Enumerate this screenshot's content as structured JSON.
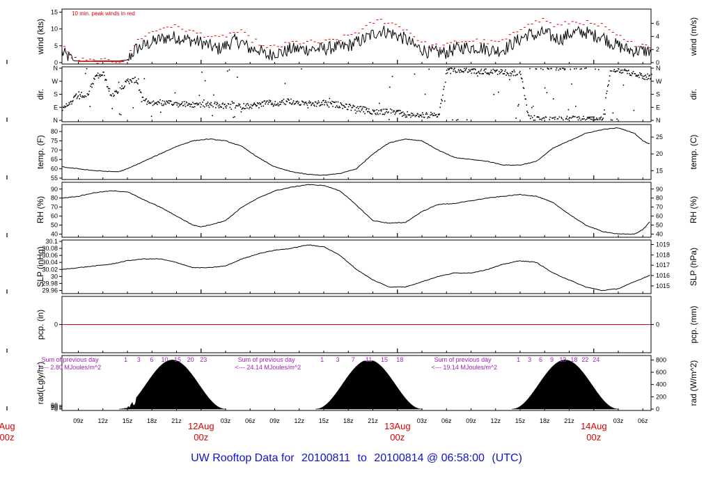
{
  "title": {
    "prefix": "UW Rooftop Data for",
    "start": "20100811",
    "connector": "to",
    "end": "20100814 @ 06:58:00",
    "tz": "(UTC)"
  },
  "time_axis": {
    "tick_labels": [
      "09z",
      "12z",
      "15z",
      "18z",
      "21z",
      "03z",
      "06z",
      "09z",
      "12z",
      "15z",
      "18z",
      "21z",
      "03z",
      "06z",
      "09z",
      "12z",
      "15z",
      "18z",
      "21z",
      "03z",
      "06z"
    ],
    "tick_hours": [
      9,
      12,
      15,
      18,
      21,
      27,
      30,
      33,
      36,
      39,
      42,
      45,
      51,
      54,
      57,
      60,
      63,
      66,
      69,
      75,
      78
    ],
    "day_labels": [
      {
        "date": "Aug",
        "hour": "00z",
        "at": 0
      },
      {
        "date": "12Aug",
        "hour": "00z",
        "at": 24
      },
      {
        "date": "13Aug",
        "hour": "00z",
        "at": 48
      },
      {
        "date": "14Aug",
        "hour": "00z",
        "at": 72
      }
    ],
    "range_hours": [
      7,
      79
    ]
  },
  "colors": {
    "frame": "#000000",
    "data": "#000000",
    "peak": "#e00000",
    "zero_line": "#e00000",
    "annotation": "#a020c0",
    "day_label": "#e00000",
    "title": "#1010d0"
  },
  "chart_data": [
    {
      "type": "line",
      "name": "wind",
      "ylabel_left": "wind (kts)",
      "ylabel_right": "wind (m/s)",
      "yticks_left": [
        0,
        5,
        10,
        15
      ],
      "yticks_right": [
        0,
        2,
        4,
        6
      ],
      "ylim": [
        0,
        15.5
      ],
      "annotation": "10 min. peak winds in red",
      "x": [
        7,
        8.5,
        9,
        10,
        11,
        12,
        13,
        14,
        15,
        16,
        17,
        18,
        19,
        20,
        21,
        22,
        23,
        24,
        25,
        26,
        27,
        28,
        29,
        30,
        31,
        32,
        33,
        34,
        35,
        36,
        37,
        38,
        39,
        40,
        41,
        42,
        43,
        44,
        45,
        46,
        47,
        48,
        49,
        50,
        51,
        52,
        53,
        54,
        55,
        56,
        57,
        58,
        59,
        60,
        61,
        62,
        63,
        64,
        65,
        66,
        67,
        68,
        69,
        70,
        71,
        72,
        73,
        74,
        75,
        76,
        77,
        78,
        79
      ],
      "y": [
        3,
        0.5,
        0.5,
        0.3,
        0.5,
        0.5,
        0.5,
        0.5,
        0.8,
        4,
        5,
        6,
        7,
        7.5,
        7.5,
        7,
        6.5,
        6,
        5,
        4,
        5,
        6.5,
        6,
        4,
        4,
        2,
        3,
        3,
        4,
        4,
        4,
        4,
        4,
        4.5,
        4.5,
        5,
        6,
        7,
        8.5,
        9.5,
        9,
        8,
        7,
        5,
        4,
        3,
        3,
        3,
        4,
        4.5,
        4.5,
        4.5,
        4,
        3.5,
        4,
        5.5,
        7,
        8.5,
        8,
        9,
        7.5,
        7,
        8.5,
        9,
        9,
        8,
        8,
        6,
        5,
        4,
        3.5,
        3.5,
        3.5
      ],
      "peak": [
        5,
        1,
        1,
        0.5,
        0.5,
        0.5,
        0.5,
        0.5,
        1,
        6,
        8,
        9,
        10,
        11,
        10.5,
        10,
        9,
        8.5,
        8,
        7,
        8,
        9,
        9,
        7,
        6,
        4,
        5,
        5,
        6,
        6,
        6,
        6,
        6,
        6.5,
        7,
        8,
        9,
        10,
        12,
        12.5,
        12,
        11,
        10,
        8,
        6,
        5,
        5,
        5,
        6,
        6.5,
        6.5,
        6.5,
        6,
        6,
        6.5,
        8,
        10,
        12,
        12,
        13,
        11,
        11,
        12,
        12,
        12,
        11,
        11,
        9,
        8,
        6,
        5.5,
        5.5,
        5
      ]
    },
    {
      "type": "scatter",
      "name": "dir",
      "ylabel_left": "dir.",
      "ylabel_right": "dir.",
      "yticks": [
        "N",
        "W",
        "S",
        "E",
        "N"
      ],
      "ylim": [
        0,
        360
      ],
      "x": [
        7,
        8,
        9,
        10,
        11,
        12,
        13,
        14,
        15,
        16,
        17,
        18,
        19,
        20,
        21,
        22,
        23,
        24,
        25,
        26,
        27,
        28,
        29,
        30,
        31,
        32,
        33,
        34,
        35,
        36,
        37,
        38,
        39,
        40,
        41,
        42,
        43,
        44,
        45,
        46,
        47,
        48,
        49,
        50,
        51,
        52,
        53,
        54,
        55,
        56,
        57,
        58,
        59,
        60,
        61,
        62,
        63,
        64,
        65,
        66,
        67,
        68,
        69,
        70,
        71,
        72,
        73,
        74,
        75,
        76,
        77,
        78,
        79
      ],
      "y": [
        290,
        240,
        180,
        200,
        60,
        40,
        200,
        150,
        90,
        80,
        230,
        240,
        240,
        245,
        250,
        250,
        255,
        250,
        255,
        255,
        265,
        260,
        265,
        260,
        255,
        240,
        250,
        235,
        230,
        240,
        245,
        250,
        240,
        250,
        255,
        270,
        280,
        290,
        300,
        305,
        300,
        310,
        320,
        325,
        325,
        325,
        330,
        20,
        15,
        15,
        20,
        25,
        25,
        25,
        30,
        35,
        30,
        345,
        350,
        355,
        355,
        355,
        350,
        350,
        350,
        355,
        355,
        5,
        10,
        30,
        40,
        60,
        60
      ]
    },
    {
      "type": "line",
      "name": "temp",
      "ylabel_left": "temp. (F)",
      "ylabel_right": "temp. (C)",
      "yticks_left": [
        55,
        60,
        65,
        70,
        75,
        80
      ],
      "yticks_right": [
        15,
        20,
        25
      ],
      "ylim": [
        55,
        83
      ],
      "x": [
        7,
        9,
        11,
        13,
        14,
        15,
        17,
        19,
        21,
        23,
        25,
        27,
        29,
        31,
        33,
        35,
        37,
        39,
        41,
        43,
        45,
        47,
        49,
        51,
        53,
        55,
        57,
        59,
        61,
        63,
        65,
        67,
        69,
        71,
        73,
        75,
        77,
        78,
        79
      ],
      "y": [
        61,
        60,
        59,
        58.5,
        58.5,
        60,
        64,
        68,
        72,
        75,
        76,
        75,
        72,
        66,
        61,
        58.5,
        57,
        56.5,
        57.5,
        60,
        68,
        74,
        76,
        75,
        70,
        66,
        65,
        64,
        62,
        62,
        64,
        71,
        75,
        79,
        81,
        82,
        79,
        75,
        73
      ]
    },
    {
      "type": "line",
      "name": "rh",
      "ylabel_left": "RH (%)",
      "ylabel_right": "RH (%)",
      "yticks": [
        40,
        50,
        60,
        70,
        80,
        90
      ],
      "ylim": [
        38,
        96
      ],
      "x": [
        7,
        9,
        11,
        13,
        15,
        17,
        19,
        21,
        23,
        24,
        25,
        27,
        29,
        31,
        33,
        35,
        37,
        39,
        41,
        43,
        45,
        47,
        49,
        51,
        53,
        55,
        57,
        59,
        61,
        63,
        65,
        67,
        69,
        71,
        73,
        75,
        77,
        78,
        79
      ],
      "y": [
        80,
        82,
        86,
        88,
        87,
        78,
        70,
        60,
        50,
        48,
        50,
        55,
        70,
        80,
        88,
        92,
        95,
        94,
        88,
        72,
        55,
        52,
        53,
        65,
        73,
        74,
        77,
        80,
        82,
        84,
        82,
        75,
        62,
        50,
        43,
        40,
        40,
        45,
        55
      ]
    },
    {
      "type": "line",
      "name": "slp",
      "ylabel_left": "SLP (inHg)",
      "ylabel_right": "SLP (hPa)",
      "yticks_left": [
        29.96,
        29.98,
        30.0,
        30.02,
        30.04,
        30.06,
        30.08,
        30.1
      ],
      "yticks_right": [
        1015,
        1016,
        1017,
        1018,
        1019
      ],
      "ylim": [
        29.955,
        30.1
      ],
      "x": [
        7,
        9,
        11,
        13,
        15,
        17,
        19,
        21,
        23,
        25,
        27,
        29,
        31,
        33,
        35,
        37,
        39,
        41,
        43,
        45,
        47,
        49,
        51,
        53,
        55,
        57,
        59,
        61,
        63,
        65,
        67,
        69,
        71,
        73,
        75,
        77,
        79
      ],
      "y": [
        30.02,
        30.025,
        30.03,
        30.035,
        30.045,
        30.05,
        30.05,
        30.04,
        30.025,
        30.025,
        30.03,
        30.05,
        30.065,
        30.075,
        30.08,
        30.09,
        30.085,
        30.06,
        30.02,
        29.99,
        29.97,
        29.97,
        29.985,
        30.0,
        30.01,
        30.01,
        30.02,
        30.035,
        30.045,
        30.04,
        30.01,
        29.99,
        29.97,
        29.96,
        29.965,
        29.985,
        30.005
      ]
    },
    {
      "type": "line",
      "name": "pcp",
      "ylabel_left": "pcp. (in)",
      "ylabel_right": "pcp. (mm)",
      "yticks_left": [
        0
      ],
      "yticks_right": [
        0
      ],
      "ylim": [
        -0.5,
        0.5
      ],
      "x": [
        7,
        79
      ],
      "y": [
        0,
        0
      ]
    },
    {
      "type": "area",
      "name": "rad",
      "ylabel_left": "rad(Lgly/hr)",
      "ylabel_right": "rad (W/m^2)",
      "yticks_left": [
        0,
        20,
        40,
        60
      ],
      "yticks_right": [
        0,
        200,
        400,
        600,
        800
      ],
      "ylim": [
        0,
        850
      ],
      "days": [
        {
          "rise": 14,
          "peak": 20.5,
          "set": 27,
          "max": 800,
          "note_line1": "Sum of previous day",
          "note_line2": "<--- 2.80 MJoules/m^2",
          "hour_labels": [
            "1",
            "3",
            "6",
            "10",
            "15",
            "20",
            "23"
          ]
        },
        {
          "rise": 38,
          "peak": 44.5,
          "set": 51,
          "max": 800,
          "note_line1": "Sum of previous day",
          "note_line2": "<--- 24.14 MJoules/m^2",
          "hour_labels": [
            "1",
            "3",
            "7",
            "11",
            "15",
            "18"
          ]
        },
        {
          "rise": 62,
          "peak": 68.5,
          "set": 75,
          "max": 800,
          "note_line1": "Sum of previous day",
          "note_line2": "<--- 19.14 MJoules/m^2",
          "hour_labels": [
            "1",
            "3",
            "6",
            "9",
            "13",
            "18",
            "22",
            "24"
          ]
        }
      ]
    }
  ]
}
